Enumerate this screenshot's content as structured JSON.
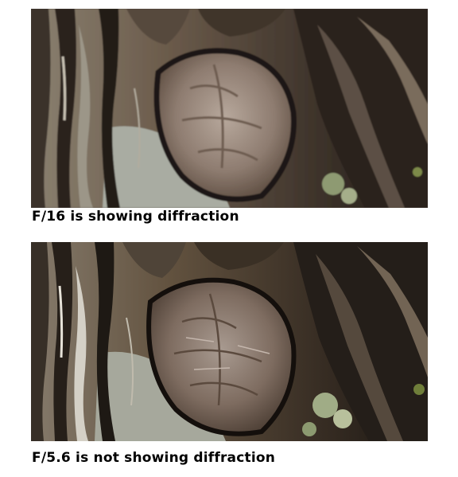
{
  "captions": {
    "top": "F/16 is showing diffraction",
    "bottom": "F/5.6 is not showing diffraction"
  },
  "photos": {
    "top": {
      "subject": "tree-bark",
      "aperture": "F/16",
      "blur": 0.7
    },
    "bottom": {
      "subject": "tree-bark",
      "aperture": "F/5.6",
      "blur": 0
    }
  }
}
